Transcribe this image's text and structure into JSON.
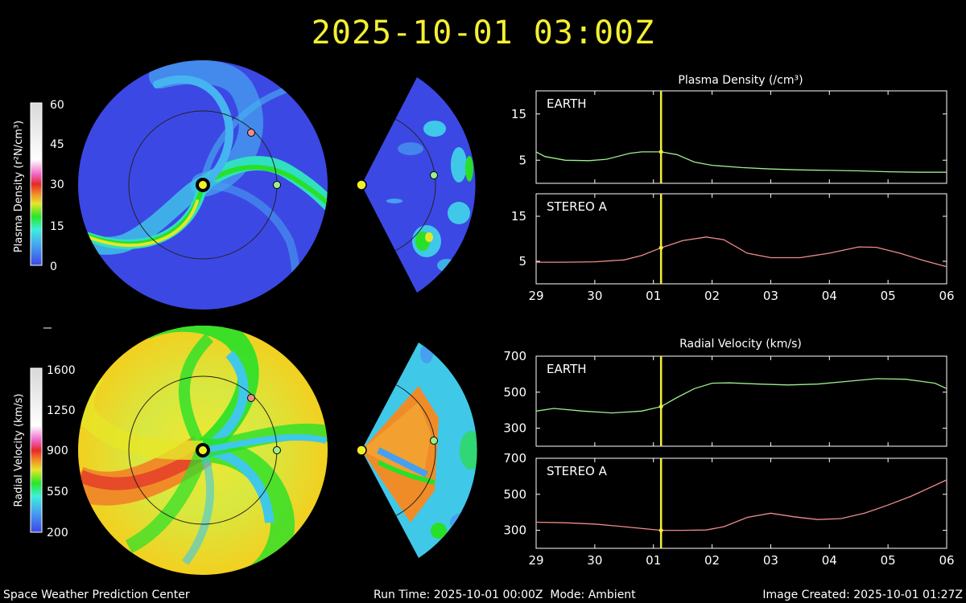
{
  "header": {
    "timestamp": "2025-10-01 03:00Z"
  },
  "footer": {
    "center": "Space Weather Prediction Center",
    "run_time": "Run Time: 2025-10-01 00:00Z",
    "mode": "Mode: Ambient",
    "image_created": "Image Created: 2025-10-01 01:27Z"
  },
  "colors": {
    "density_marker": "#f0f028",
    "earth_trace": "#9cf08c",
    "stereo_trace": "#f08c8c",
    "time_line": "#f2ef3c",
    "axis": "#ffffff"
  },
  "colorbars": {
    "density": {
      "label": "Plasma Density (r²N/cm³)",
      "ticks": [
        "60",
        "45",
        "30",
        "15",
        "0"
      ]
    },
    "velocity": {
      "label": "Radial Velocity (km/s)",
      "ticks": [
        "1600",
        "1250",
        "900",
        "550",
        "200"
      ]
    }
  },
  "chart_data": [
    {
      "type": "line",
      "title": "Plasma Density (/cm³)",
      "panel": "EARTH",
      "xlabel": "",
      "ylabel": "",
      "x_ticks": [
        "29",
        "30",
        "01",
        "02",
        "03",
        "04",
        "05",
        "06"
      ],
      "y_ticks": [
        5,
        15
      ],
      "ylim": [
        0,
        20
      ],
      "xlim": [
        0,
        7
      ],
      "current_time_x": 2.13,
      "series": [
        {
          "name": "EARTH",
          "x": [
            0,
            0.15,
            0.5,
            0.9,
            1.2,
            1.6,
            1.8,
            2.13,
            2.4,
            2.7,
            3.0,
            3.5,
            4.0,
            4.5,
            5.0,
            5.5,
            6.0,
            6.5,
            7.0
          ],
          "values": [
            6.8,
            5.8,
            5.0,
            4.9,
            5.2,
            6.5,
            6.8,
            6.8,
            6.2,
            4.6,
            3.9,
            3.4,
            3.1,
            2.9,
            2.8,
            2.7,
            2.5,
            2.4,
            2.4
          ]
        }
      ]
    },
    {
      "type": "line",
      "title": "",
      "panel": "STEREO A",
      "xlabel": "",
      "ylabel": "",
      "x_ticks": [
        "29",
        "30",
        "01",
        "02",
        "03",
        "04",
        "05",
        "06"
      ],
      "y_ticks": [
        5,
        15
      ],
      "ylim": [
        0,
        20
      ],
      "xlim": [
        0,
        7
      ],
      "current_time_x": 2.13,
      "series": [
        {
          "name": "STEREO A",
          "x": [
            0,
            0.5,
            1.0,
            1.5,
            1.8,
            2.13,
            2.5,
            2.9,
            3.2,
            3.6,
            4.0,
            4.5,
            5.0,
            5.5,
            5.8,
            6.2,
            6.6,
            7.0
          ],
          "values": [
            4.8,
            4.8,
            4.9,
            5.3,
            6.3,
            8.0,
            9.6,
            10.4,
            9.8,
            6.8,
            5.8,
            5.8,
            6.8,
            8.2,
            8.1,
            6.8,
            5.2,
            3.8
          ]
        }
      ]
    },
    {
      "type": "line",
      "title": "Radial Velocity (km/s)",
      "panel": "EARTH",
      "xlabel": "",
      "ylabel": "",
      "x_ticks": [
        "29",
        "30",
        "01",
        "02",
        "03",
        "04",
        "05",
        "06"
      ],
      "y_ticks": [
        300,
        500,
        700
      ],
      "ylim": [
        200,
        700
      ],
      "xlim": [
        0,
        7
      ],
      "current_time_x": 2.13,
      "series": [
        {
          "name": "EARTH",
          "x": [
            0,
            0.3,
            0.8,
            1.3,
            1.8,
            2.13,
            2.4,
            2.7,
            3.0,
            3.3,
            3.8,
            4.3,
            4.8,
            5.3,
            5.8,
            6.3,
            6.8,
            7.0
          ],
          "values": [
            395,
            410,
            395,
            385,
            395,
            420,
            470,
            520,
            550,
            552,
            545,
            540,
            545,
            560,
            575,
            572,
            550,
            520
          ]
        }
      ]
    },
    {
      "type": "line",
      "title": "",
      "panel": "STEREO A",
      "xlabel": "",
      "ylabel": "",
      "x_ticks": [
        "29",
        "30",
        "01",
        "02",
        "03",
        "04",
        "05",
        "06"
      ],
      "y_ticks": [
        300,
        500,
        700
      ],
      "ylim": [
        200,
        700
      ],
      "xlim": [
        0,
        7
      ],
      "current_time_x": 2.13,
      "series": [
        {
          "name": "STEREO A",
          "x": [
            0,
            0.5,
            1.0,
            1.5,
            2.13,
            2.5,
            2.9,
            3.2,
            3.6,
            4.0,
            4.4,
            4.8,
            5.2,
            5.6,
            6.0,
            6.4,
            6.8,
            7.0
          ],
          "values": [
            345,
            342,
            335,
            320,
            300,
            300,
            302,
            320,
            372,
            395,
            375,
            360,
            365,
            395,
            440,
            490,
            550,
            580
          ]
        }
      ]
    }
  ]
}
